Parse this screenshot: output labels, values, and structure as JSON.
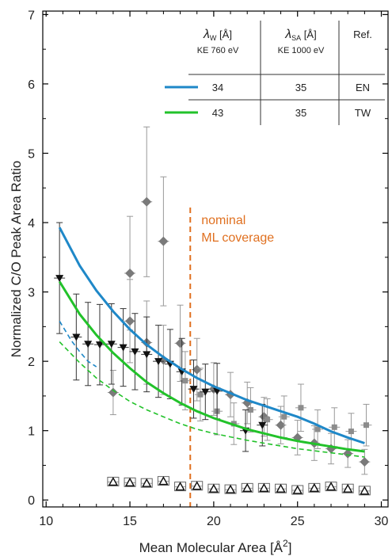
{
  "chart_data": {
    "type": "scatter",
    "xlabel": "Mean Molecular Area [Å",
    "xlabel_sup": "2",
    "xlabel_end": "]",
    "ylabel": "Normalized C/O Peak Area Ratio",
    "xlim": [
      9.8,
      30.4
    ],
    "ylim": [
      -0.1,
      7.05
    ],
    "xticks": [
      10,
      15,
      20,
      25,
      30
    ],
    "yticks": [
      0,
      1,
      2,
      3,
      4,
      5,
      6,
      7
    ],
    "grid": false,
    "annotation": {
      "line1": "nominal",
      "line2": "ML coverage",
      "x": 18.6,
      "color": "#e07020"
    },
    "table": {
      "header": {
        "lambda_w_sym": "λ",
        "lambda_w_sub": "W",
        "lambda_w_unit": " [Å]",
        "lambda_w_ke": "KE 760 eV",
        "lambda_sa_sym": "λ",
        "lambda_sa_sub": "SA",
        "lambda_sa_unit": " [Å]",
        "lambda_sa_ke": "KE 1000 eV",
        "ref": "Ref."
      },
      "rows": [
        {
          "color": "#1f88c8",
          "lambda_w": "34",
          "lambda_sa": "35",
          "ref": "EN"
        },
        {
          "color": "#22c22a",
          "lambda_w": "43",
          "lambda_sa": "35",
          "ref": "TW"
        }
      ]
    },
    "curves": [
      {
        "color": "#1f88c8",
        "style": "solid",
        "x": [
          10.8,
          12,
          13,
          14,
          15,
          16,
          17,
          18,
          19,
          20,
          21,
          22,
          23,
          24,
          25,
          26,
          27,
          28,
          29
        ],
        "y": [
          3.93,
          3.38,
          3.02,
          2.72,
          2.46,
          2.24,
          2.06,
          1.9,
          1.76,
          1.64,
          1.54,
          1.44,
          1.36,
          1.28,
          1.2,
          1.1,
          0.99,
          0.9,
          0.82
        ]
      },
      {
        "color": "#22c22a",
        "style": "solid",
        "x": [
          10.8,
          12,
          13,
          14,
          15,
          16,
          17,
          18,
          19,
          20,
          21,
          22,
          23,
          24,
          25,
          26,
          27,
          28,
          29
        ],
        "y": [
          3.15,
          2.68,
          2.38,
          2.12,
          1.9,
          1.7,
          1.54,
          1.4,
          1.28,
          1.18,
          1.1,
          1.02,
          0.96,
          0.9,
          0.85,
          0.81,
          0.77,
          0.73,
          0.7
        ]
      },
      {
        "color": "#22c22a",
        "style": "dashed",
        "x": [
          10.8,
          12,
          13,
          14,
          15,
          16,
          17,
          18,
          19,
          20,
          21,
          22,
          23,
          24,
          25,
          26,
          27,
          28,
          29
        ],
        "y": [
          2.28,
          1.98,
          1.76,
          1.58,
          1.42,
          1.3,
          1.2,
          1.1,
          1.02,
          0.96,
          0.91,
          0.86,
          0.82,
          0.78,
          0.74,
          0.71,
          0.68,
          0.65,
          0.62
        ]
      },
      {
        "color": "#1f88c8",
        "style": "dashed",
        "x": [
          10.8,
          11.5,
          12,
          12.5,
          13
        ],
        "y": [
          2.58,
          2.3,
          2.14,
          2.0,
          1.92
        ]
      }
    ],
    "series": [
      {
        "marker": "diamond",
        "color": "#7a7a7a",
        "points": [
          {
            "x": 14.0,
            "y": 1.55,
            "yerr": 0.32
          },
          {
            "x": 15.0,
            "y": 3.27,
            "yerr": 0.82
          },
          {
            "x": 15.0,
            "y": 2.58,
            "yerr": 0.6
          },
          {
            "x": 16.0,
            "y": 4.3,
            "yerr": 1.08
          },
          {
            "x": 16.0,
            "y": 2.27,
            "yerr": 0.6
          },
          {
            "x": 17.0,
            "y": 3.73,
            "yerr": 0.93
          },
          {
            "x": 17.0,
            "y": 2.02,
            "yerr": 0.5
          },
          {
            "x": 18.0,
            "y": 2.26,
            "yerr": 0.55
          },
          {
            "x": 19.0,
            "y": 1.88,
            "yerr": 0.45
          },
          {
            "x": 20.0,
            "y": 1.6,
            "yerr": 0.38
          },
          {
            "x": 21.0,
            "y": 1.52,
            "yerr": 0.32
          },
          {
            "x": 22.0,
            "y": 1.4,
            "yerr": 0.3
          },
          {
            "x": 23.0,
            "y": 1.2,
            "yerr": 0.28
          },
          {
            "x": 24.0,
            "y": 1.08,
            "yerr": 0.27
          },
          {
            "x": 25.0,
            "y": 0.9,
            "yerr": 0.25
          },
          {
            "x": 26.0,
            "y": 0.82,
            "yerr": 0.25
          },
          {
            "x": 27.0,
            "y": 0.74,
            "yerr": 0.22
          },
          {
            "x": 28.0,
            "y": 0.67,
            "yerr": 0.2
          },
          {
            "x": 29.0,
            "y": 0.55,
            "yerr": 0.18
          }
        ]
      },
      {
        "marker": "square",
        "color": "#8c8c8c",
        "points": [
          {
            "x": 18.3,
            "y": 1.72,
            "yerr": 0.42
          },
          {
            "x": 19.2,
            "y": 1.52,
            "yerr": 0.38
          },
          {
            "x": 20.2,
            "y": 1.28,
            "yerr": 0.34
          },
          {
            "x": 21.2,
            "y": 1.1,
            "yerr": 0.3
          },
          {
            "x": 22.2,
            "y": 1.3,
            "yerr": 0.32
          },
          {
            "x": 23.2,
            "y": 1.16,
            "yerr": 0.3
          },
          {
            "x": 24.2,
            "y": 1.2,
            "yerr": 0.3
          },
          {
            "x": 25.2,
            "y": 1.33,
            "yerr": 0.34
          },
          {
            "x": 26.2,
            "y": 1.02,
            "yerr": 0.28
          },
          {
            "x": 27.2,
            "y": 1.05,
            "yerr": 0.28
          },
          {
            "x": 28.2,
            "y": 0.99,
            "yerr": 0.26
          },
          {
            "x": 29.1,
            "y": 1.08,
            "yerr": 0.3
          }
        ]
      },
      {
        "marker": "triangle-down",
        "color": "#111111",
        "points": [
          {
            "x": 10.8,
            "y": 3.2,
            "yerr": 0.8
          },
          {
            "x": 11.8,
            "y": 2.35,
            "yerr": 0.62
          },
          {
            "x": 12.5,
            "y": 2.25,
            "yerr": 0.6
          },
          {
            "x": 13.2,
            "y": 2.24,
            "yerr": 0.58
          },
          {
            "x": 13.9,
            "y": 2.25,
            "yerr": 0.58
          },
          {
            "x": 14.6,
            "y": 2.2,
            "yerr": 0.56
          },
          {
            "x": 15.3,
            "y": 2.14,
            "yerr": 0.55
          },
          {
            "x": 16.0,
            "y": 2.1,
            "yerr": 0.54
          },
          {
            "x": 16.7,
            "y": 2.0,
            "yerr": 0.52
          },
          {
            "x": 17.4,
            "y": 1.96,
            "yerr": 0.5
          },
          {
            "x": 18.1,
            "y": 1.85,
            "yerr": 0.48
          },
          {
            "x": 18.8,
            "y": 1.6,
            "yerr": 0.42
          },
          {
            "x": 19.5,
            "y": 1.56,
            "yerr": 0.4
          },
          {
            "x": 20.2,
            "y": 1.57,
            "yerr": 0.4
          },
          {
            "x": 21.9,
            "y": 1.0,
            "yerr": 0.3
          },
          {
            "x": 22.9,
            "y": 1.08,
            "yerr": 0.3
          }
        ]
      },
      {
        "marker": "triangle-up-open",
        "color": "#111111",
        "points": [
          {
            "x": 14.0,
            "y": 0.26
          },
          {
            "x": 15.0,
            "y": 0.25
          },
          {
            "x": 16.0,
            "y": 0.24
          },
          {
            "x": 17.0,
            "y": 0.27
          },
          {
            "x": 18.0,
            "y": 0.19
          },
          {
            "x": 19.0,
            "y": 0.2
          },
          {
            "x": 20.0,
            "y": 0.16
          },
          {
            "x": 21.0,
            "y": 0.15
          },
          {
            "x": 22.0,
            "y": 0.17
          },
          {
            "x": 23.0,
            "y": 0.17
          },
          {
            "x": 24.0,
            "y": 0.16
          },
          {
            "x": 25.0,
            "y": 0.14
          },
          {
            "x": 26.0,
            "y": 0.17
          },
          {
            "x": 27.0,
            "y": 0.19
          },
          {
            "x": 28.0,
            "y": 0.16
          },
          {
            "x": 29.0,
            "y": 0.13
          }
        ]
      }
    ]
  }
}
